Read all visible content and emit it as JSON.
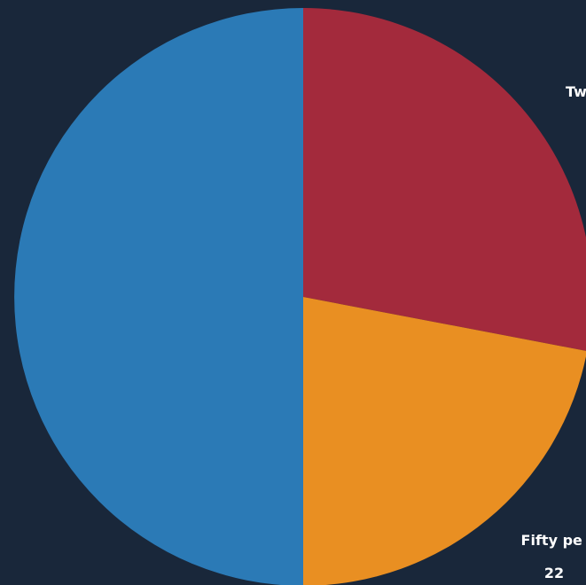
{
  "chart_data": {
    "type": "pie",
    "title": "",
    "colors": {
      "background": "#19273a",
      "label": "#ffffff"
    },
    "slices": [
      {
        "label_lines": [
          "Tw"
        ],
        "value": 28,
        "color": "#a32a3c"
      },
      {
        "label_lines": [
          "Fifty pe",
          "22"
        ],
        "value": 22,
        "color": "#e98f22"
      },
      {
        "label_lines": [],
        "value": 50,
        "color": "#2b7ab6"
      }
    ]
  }
}
